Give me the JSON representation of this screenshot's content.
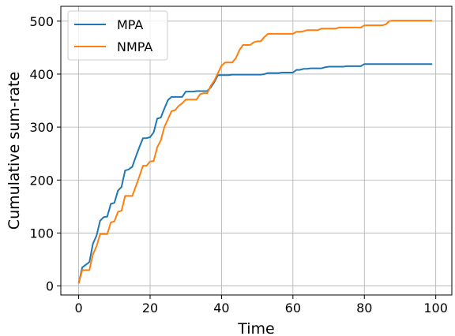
{
  "chart_data": {
    "type": "line",
    "xlabel": "Time",
    "ylabel": "Cumulative sum-rate",
    "xlim": [
      -5,
      104.5
    ],
    "ylim": [
      -17,
      528
    ],
    "xticks": [
      0,
      20,
      40,
      60,
      80,
      100
    ],
    "yticks": [
      0,
      100,
      200,
      300,
      400,
      500
    ],
    "grid": true,
    "legend": "top-left",
    "series": [
      {
        "name": "MPA",
        "color": "#1f77b4",
        "x": [
          0,
          1,
          2,
          3,
          4,
          5,
          6,
          7,
          8,
          9,
          10,
          11,
          12,
          13,
          14,
          15,
          16,
          17,
          18,
          19,
          20,
          21,
          22,
          23,
          24,
          25,
          26,
          27,
          28,
          29,
          30,
          31,
          32,
          33,
          34,
          35,
          36,
          37,
          38,
          39,
          40,
          41,
          42,
          43,
          44,
          45,
          46,
          47,
          48,
          49,
          50,
          51,
          52,
          53,
          54,
          55,
          56,
          57,
          58,
          59,
          60,
          61,
          62,
          63,
          64,
          65,
          66,
          67,
          68,
          69,
          70,
          71,
          72,
          73,
          74,
          75,
          76,
          77,
          78,
          79,
          80,
          81,
          82,
          83,
          84,
          85,
          86,
          87,
          88,
          89,
          90,
          91,
          92,
          93,
          94,
          95,
          96,
          97,
          98,
          99
        ],
        "y": [
          5,
          35,
          40,
          45,
          80,
          95,
          123,
          130,
          131,
          155,
          157,
          180,
          187,
          218,
          220,
          225,
          244,
          262,
          279,
          279,
          281,
          290,
          316,
          318,
          335,
          351,
          357,
          357,
          357,
          357,
          367,
          367,
          367,
          368,
          368,
          368,
          368,
          375,
          385,
          398,
          398,
          398,
          398,
          399,
          399,
          399,
          399,
          399,
          399,
          399,
          399,
          399,
          400,
          402,
          402,
          402,
          402,
          403,
          403,
          403,
          403,
          408,
          408,
          410,
          410,
          411,
          411,
          411,
          411,
          413,
          414,
          414,
          414,
          414,
          414,
          415,
          415,
          415,
          415,
          415,
          419,
          419,
          419,
          419,
          419,
          419,
          419,
          419,
          419,
          419,
          419,
          419,
          419,
          419,
          419,
          419,
          419,
          419,
          419,
          419
        ]
      },
      {
        "name": "NMPA",
        "color": "#ff7f0e",
        "x": [
          0,
          1,
          2,
          3,
          4,
          5,
          6,
          7,
          8,
          9,
          10,
          11,
          12,
          13,
          14,
          15,
          16,
          17,
          18,
          19,
          20,
          21,
          22,
          23,
          24,
          25,
          26,
          27,
          28,
          29,
          30,
          31,
          32,
          33,
          34,
          35,
          36,
          37,
          38,
          39,
          40,
          41,
          42,
          43,
          44,
          45,
          46,
          47,
          48,
          49,
          50,
          51,
          52,
          53,
          54,
          55,
          56,
          57,
          58,
          59,
          60,
          61,
          62,
          63,
          64,
          65,
          66,
          67,
          68,
          69,
          70,
          71,
          72,
          73,
          74,
          75,
          76,
          77,
          78,
          79,
          80,
          81,
          82,
          83,
          84,
          85,
          86,
          87,
          88,
          89,
          90,
          91,
          92,
          93,
          94,
          95,
          96,
          97,
          98,
          99
        ],
        "y": [
          5,
          30,
          30,
          30,
          60,
          75,
          98,
          98,
          98,
          120,
          122,
          140,
          142,
          170,
          170,
          170,
          188,
          207,
          227,
          227,
          235,
          236,
          262,
          275,
          300,
          315,
          330,
          332,
          340,
          345,
          352,
          352,
          352,
          352,
          362,
          364,
          364,
          378,
          388,
          402,
          416,
          422,
          422,
          422,
          430,
          445,
          455,
          455,
          455,
          460,
          462,
          462,
          470,
          476,
          476,
          476,
          476,
          476,
          476,
          476,
          476,
          480,
          480,
          481,
          483,
          483,
          483,
          483,
          486,
          486,
          486,
          486,
          486,
          488,
          488,
          488,
          488,
          488,
          488,
          488,
          492,
          492,
          492,
          492,
          492,
          492,
          494,
          500,
          501,
          501,
          501,
          501,
          501,
          501,
          501,
          501,
          501,
          501,
          501,
          501
        ]
      }
    ]
  }
}
